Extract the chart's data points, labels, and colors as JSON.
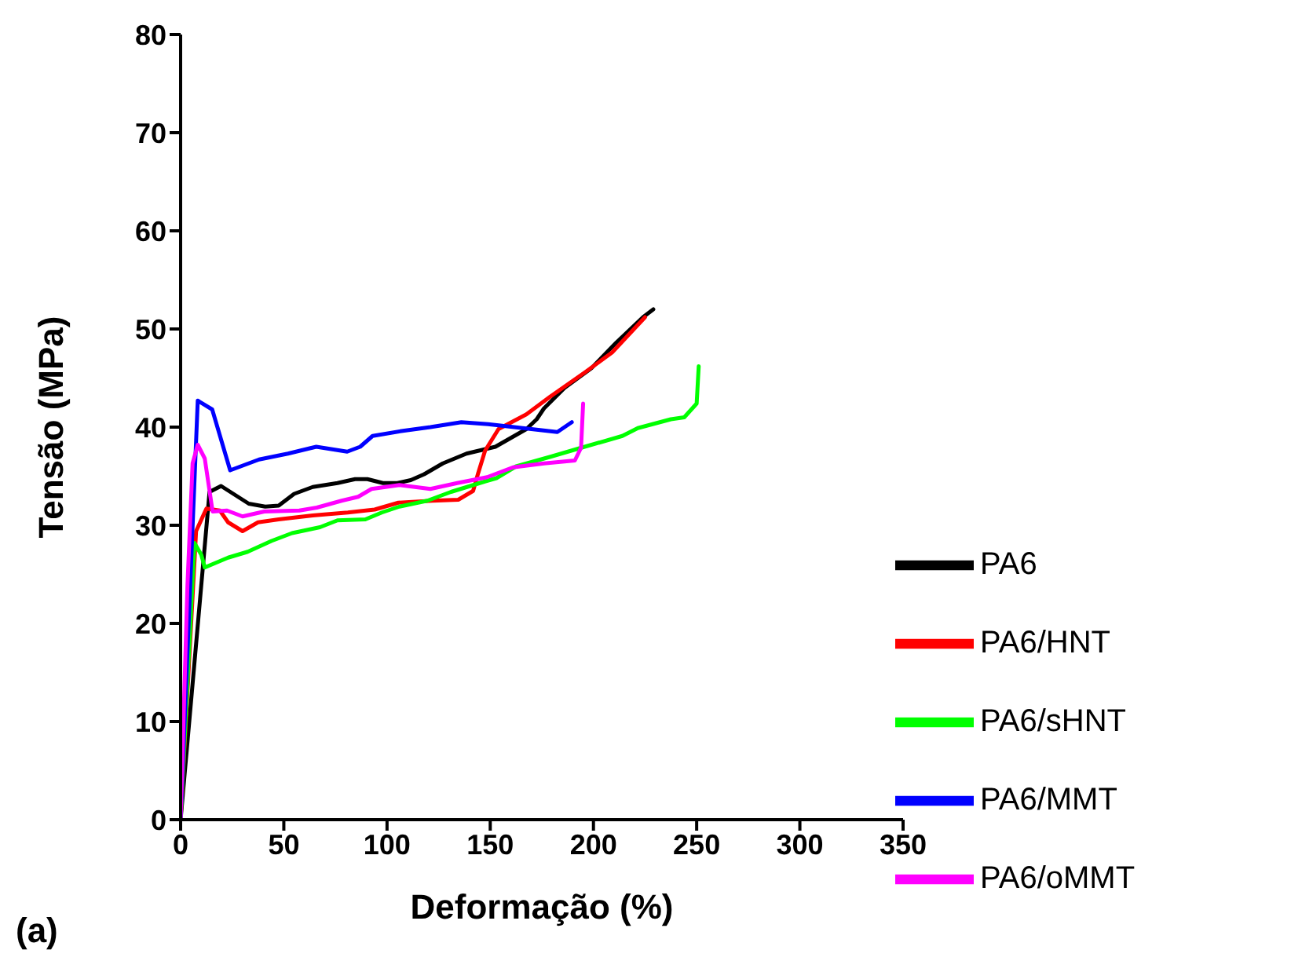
{
  "chart_data": {
    "type": "line",
    "xlabel": "Deformação (%)",
    "ylabel": "Tensão (MPa)",
    "annotations": [
      "(a)"
    ],
    "xlim": [
      0,
      350
    ],
    "xticks": [
      0,
      50,
      100,
      150,
      200,
      250,
      300,
      350
    ],
    "ylim": [
      0,
      80
    ],
    "yticks": [
      0,
      10,
      20,
      30,
      40,
      50,
      60,
      70,
      80
    ],
    "grid": false,
    "legend": "bottom right",
    "marker": "none",
    "line_style": "solid",
    "series": [
      {
        "name": "PA6",
        "color": "#000000",
        "x": [
          0,
          14,
          19.6,
          33,
          41,
          47.5,
          55,
          64,
          76,
          84.5,
          90.5,
          98,
          105,
          111.5,
          118,
          127,
          138.5,
          152.5,
          167.5,
          172.5,
          176,
          186,
          199,
          211,
          224,
          229
        ],
        "values": [
          0,
          33.4,
          34,
          32.2,
          31.9,
          32,
          33.2,
          33.9,
          34.3,
          34.7,
          34.7,
          34.3,
          34.3,
          34.6,
          35.2,
          36.3,
          37.3,
          38,
          39.8,
          40.8,
          41.9,
          44,
          46,
          48.6,
          51.2,
          52
        ]
      },
      {
        "name": "PA6/HNT",
        "color": "#ff0000",
        "x": [
          0,
          7.5,
          12.5,
          19,
          23,
          30,
          37.5,
          47.5,
          64,
          81,
          94,
          105.5,
          122,
          134.5,
          141.7,
          144,
          147.5,
          154,
          167.5,
          179,
          196,
          209,
          225
        ],
        "values": [
          0,
          29.4,
          31.7,
          31.5,
          30.3,
          29.4,
          30.3,
          30.6,
          31,
          31.3,
          31.6,
          32.3,
          32.5,
          32.6,
          33.5,
          35.2,
          37.6,
          39.8,
          41.3,
          43.1,
          45.6,
          47.6,
          51.2
        ]
      },
      {
        "name": "PA6/sHNT",
        "color": "#00ff00",
        "x": [
          0,
          6.7,
          10,
          11.7,
          23,
          32.5,
          44,
          54,
          67.5,
          76,
          89.5,
          97.5,
          106,
          119.5,
          131,
          148,
          153,
          162.5,
          179.5,
          192.5,
          214,
          221.5,
          237.5,
          244,
          250,
          251
        ],
        "values": [
          0,
          28.2,
          27,
          25.7,
          26.7,
          27.3,
          28.4,
          29.2,
          29.8,
          30.5,
          30.6,
          31.3,
          31.9,
          32.5,
          33.4,
          34.5,
          34.8,
          36,
          37,
          37.8,
          39.1,
          39.9,
          40.8,
          41,
          42.4,
          46.2
        ]
      },
      {
        "name": "PA6/MMT",
        "color": "#0000ff",
        "x": [
          0,
          8.3,
          15.3,
          24,
          38,
          52,
          65.7,
          80.7,
          87,
          93,
          107,
          121,
          136,
          149,
          182.5,
          189.5
        ],
        "values": [
          0,
          42.7,
          41.8,
          35.6,
          36.7,
          37.3,
          38,
          37.5,
          38,
          39.1,
          39.6,
          40,
          40.5,
          40.3,
          39.5,
          40.5
        ]
      },
      {
        "name": "PA6/oMMT",
        "color": "#ff00ff",
        "x": [
          0,
          3.3,
          5.8,
          8.3,
          11.7,
          15.5,
          22.5,
          30,
          40.5,
          57.5,
          66,
          78,
          86,
          92.5,
          106,
          121,
          134,
          148.5,
          161,
          176,
          191,
          194,
          195
        ],
        "values": [
          0,
          23.8,
          36.3,
          38.2,
          36.8,
          31.4,
          31.5,
          30.9,
          31.4,
          31.5,
          31.8,
          32.5,
          32.9,
          33.7,
          34.1,
          33.7,
          34.3,
          34.9,
          35.9,
          36.3,
          36.6,
          37.9,
          42.4
        ]
      }
    ]
  }
}
